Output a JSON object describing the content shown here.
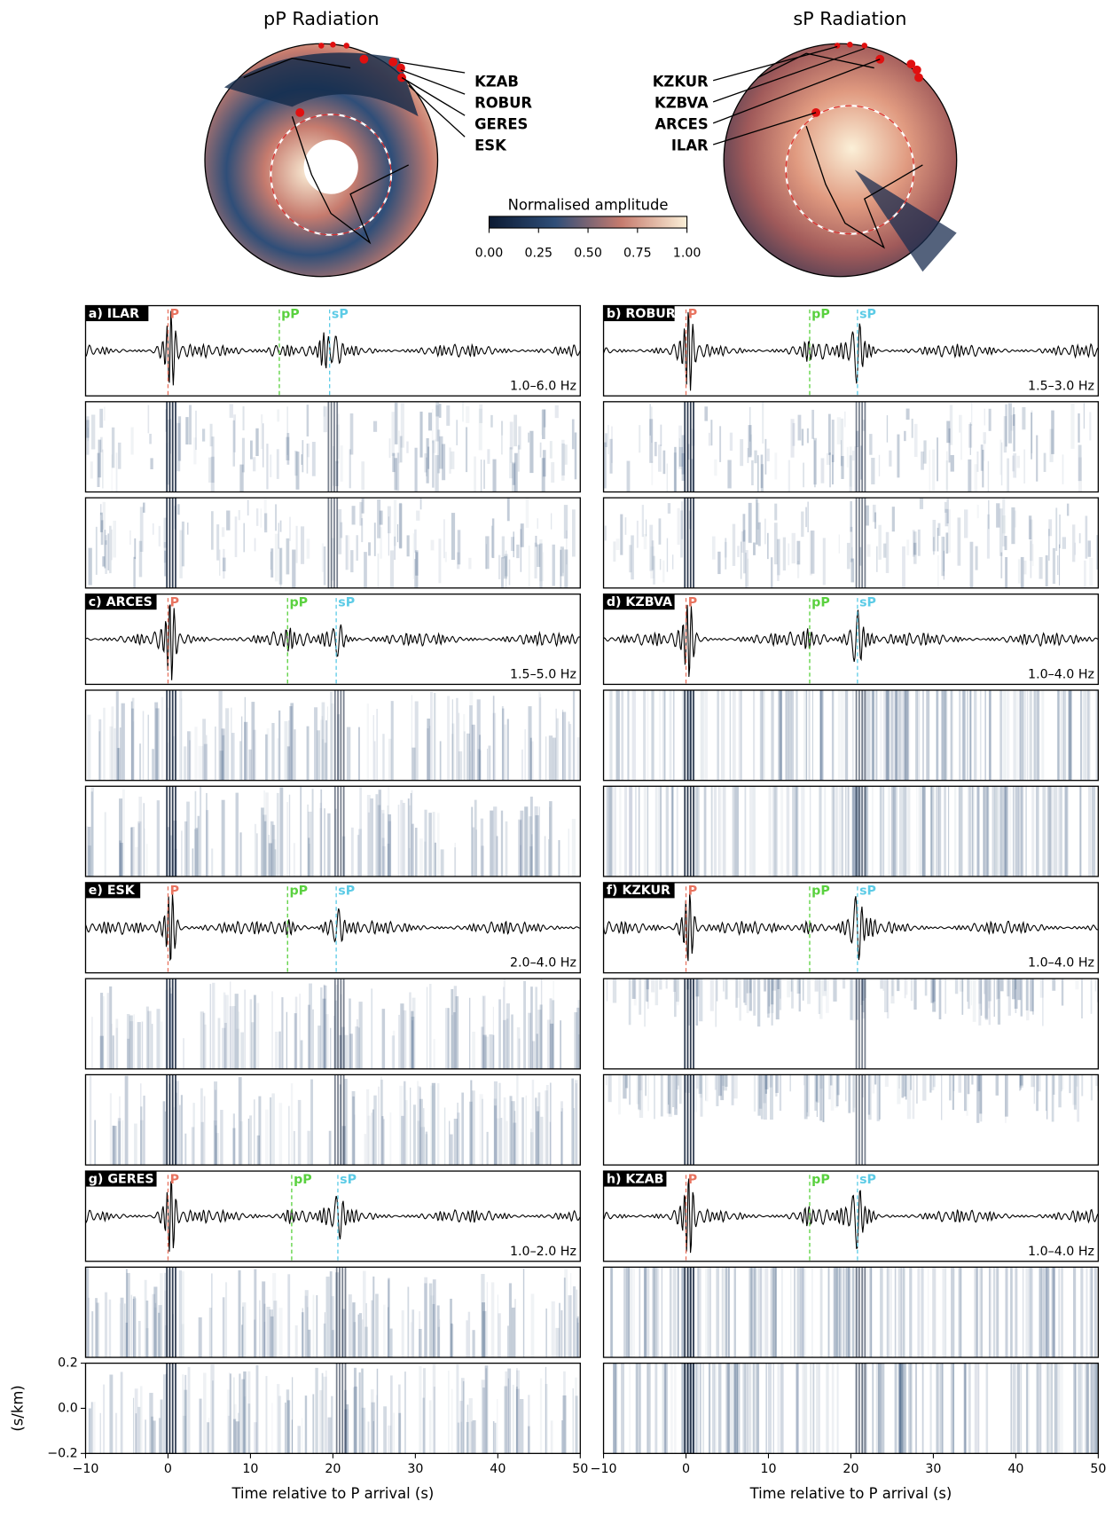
{
  "maps": [
    {
      "title": "pP Radiation",
      "stations": [
        "KZAB",
        "ROBUR",
        "GERES",
        "ESK"
      ]
    },
    {
      "title": "sP Radiation",
      "stations": [
        "KZKUR",
        "KZBVA",
        "ARCES",
        "ILAR"
      ]
    }
  ],
  "colorbar": {
    "label": "Normalised amplitude",
    "lim": [
      0,
      1
    ],
    "colors": [
      "#0b1a33",
      "#2f4e78",
      "#c67b6e",
      "#fbf0d8"
    ],
    "ticks": [
      {
        "value": 0,
        "label": "0.00"
      },
      {
        "value": 0.25,
        "label": "0.25"
      },
      {
        "value": 0.5,
        "label": "0.50"
      },
      {
        "value": 0.75,
        "label": "0.75"
      },
      {
        "value": 1,
        "label": "1.00"
      }
    ]
  },
  "time_axis": {
    "label": "Time relative to P arrival (s)",
    "xlim": [
      -10,
      50
    ],
    "xticks": [
      {
        "value": -10,
        "label": "−10"
      },
      0,
      10,
      20,
      30,
      40,
      50
    ]
  },
  "slowness_axis": {
    "label": "(s/km)",
    "ylim": [
      -0.2,
      0.2
    ],
    "yticks": [
      0.2,
      {
        "value": 0,
        "label": "0.0"
      },
      {
        "value": -0.2,
        "label": "−0.2"
      }
    ]
  },
  "phase_colors": [
    "#e8735f",
    "#5ad13f",
    "#5ccbe6"
  ],
  "chart_data": [
    {
      "type": "seismogram",
      "label": "a) ILAR",
      "band": "1.0–6.0 Hz",
      "phases": [
        {
          "name": "P",
          "time": 0
        },
        {
          "name": "pP",
          "time": 13.5
        },
        {
          "name": "sP",
          "time": 19.6
        }
      ]
    },
    {
      "type": "seismogram",
      "label": "b) ROBUR",
      "band": "1.5–3.0 Hz",
      "phases": [
        {
          "name": "P",
          "time": 0
        },
        {
          "name": "pP",
          "time": 15
        },
        {
          "name": "sP",
          "time": 20.8
        }
      ]
    },
    {
      "type": "seismogram",
      "label": "c) ARCES",
      "band": "1.5–5.0 Hz",
      "phases": [
        {
          "name": "P",
          "time": 0
        },
        {
          "name": "pP",
          "time": 14.5
        },
        {
          "name": "sP",
          "time": 20.4
        }
      ]
    },
    {
      "type": "seismogram",
      "label": "d) KZBVA",
      "band": "1.0–4.0 Hz",
      "phases": [
        {
          "name": "P",
          "time": 0
        },
        {
          "name": "pP",
          "time": 15
        },
        {
          "name": "sP",
          "time": 20.8
        }
      ]
    },
    {
      "type": "seismogram",
      "label": "e) ESK",
      "band": "2.0–4.0 Hz",
      "phases": [
        {
          "name": "P",
          "time": 0
        },
        {
          "name": "pP",
          "time": 14.5
        },
        {
          "name": "sP",
          "time": 20.4
        }
      ]
    },
    {
      "type": "seismogram",
      "label": "f) KZKUR",
      "band": "1.0–4.0 Hz",
      "phases": [
        {
          "name": "P",
          "time": 0
        },
        {
          "name": "pP",
          "time": 15
        },
        {
          "name": "sP",
          "time": 20.8
        }
      ]
    },
    {
      "type": "seismogram",
      "label": "g) GERES",
      "band": "1.0–2.0 Hz",
      "phases": [
        {
          "name": "P",
          "time": 0
        },
        {
          "name": "pP",
          "time": 15
        },
        {
          "name": "sP",
          "time": 20.6
        }
      ]
    },
    {
      "type": "seismogram",
      "label": "h) KZAB",
      "band": "1.0–4.0 Hz",
      "phases": [
        {
          "name": "P",
          "time": 0
        },
        {
          "name": "pP",
          "time": 15
        },
        {
          "name": "sP",
          "time": 20.8
        }
      ]
    }
  ]
}
